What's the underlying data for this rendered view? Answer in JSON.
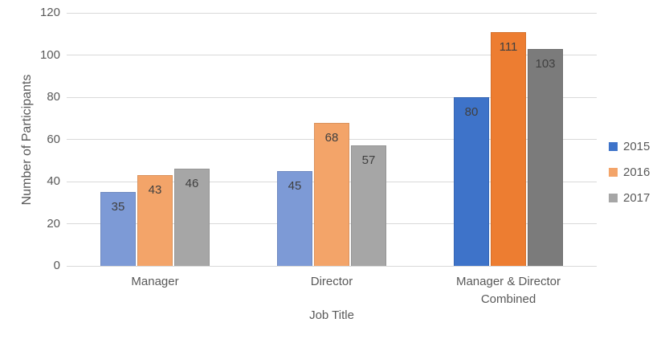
{
  "chart_data": {
    "type": "bar",
    "title": "",
    "xlabel": "Job Title",
    "ylabel": "Number of Participants",
    "ylim": [
      0,
      120
    ],
    "ytick_interval": 20,
    "grid": true,
    "data_labels": true,
    "legend_position": "right",
    "categories": [
      "Manager",
      "Director",
      "Manager & Director Combined"
    ],
    "series": [
      {
        "name": "2015",
        "values": [
          35,
          45,
          80
        ],
        "bar_colors": [
          "#7d9ad6",
          "#7d9ad6",
          "#3e73c9"
        ],
        "legend_color": "#3e73c9"
      },
      {
        "name": "2016",
        "values": [
          43,
          68,
          111
        ],
        "bar_colors": [
          "#f3a469",
          "#f3a469",
          "#ed7d31"
        ],
        "legend_color": "#f3a469"
      },
      {
        "name": "2017",
        "values": [
          46,
          57,
          103
        ],
        "bar_colors": [
          "#a6a6a6",
          "#a6a6a6",
          "#7b7b7b"
        ],
        "legend_color": "#a6a6a6"
      }
    ],
    "colors": {
      "gridline": "#d9d9d9",
      "axis_text": "#595959",
      "data_label": "#404040"
    }
  }
}
